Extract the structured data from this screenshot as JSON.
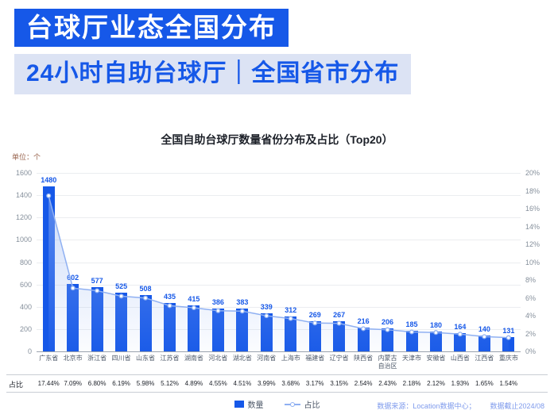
{
  "header": {
    "title": "台球厅业态全国分布",
    "subtitle": "24小时自助台球厅｜全国省市分布"
  },
  "chart": {
    "title": "全国自助台球厅数量省份分布及占比（Top20）",
    "unit_label": "单位：个",
    "ratio_row_label": "占比"
  },
  "chart_data": {
    "type": "bar",
    "title": "全国自助台球厅数量省份分布及占比（Top20）",
    "categories": [
      "广东省",
      "北京市",
      "浙江省",
      "四川省",
      "山东省",
      "江苏省",
      "湖南省",
      "河北省",
      "湖北省",
      "河南省",
      "上海市",
      "福建省",
      "辽宁省",
      "陕西省",
      "内蒙古自治区",
      "天津市",
      "安徽省",
      "山西省",
      "江西省",
      "重庆市"
    ],
    "series": [
      {
        "name": "数量",
        "type": "bar",
        "values": [
          1480,
          602,
          577,
          525,
          508,
          435,
          415,
          386,
          383,
          339,
          312,
          269,
          267,
          216,
          206,
          185,
          180,
          164,
          140,
          131
        ]
      },
      {
        "name": "占比",
        "type": "line",
        "values": [
          17.44,
          7.09,
          6.8,
          6.19,
          5.98,
          5.12,
          4.89,
          4.55,
          4.51,
          3.99,
          3.68,
          3.17,
          3.15,
          2.54,
          2.43,
          2.18,
          2.12,
          1.93,
          1.65,
          1.54
        ]
      }
    ],
    "left_axis": {
      "min": 0,
      "max": 1600,
      "step": 200
    },
    "right_axis": {
      "min": 0,
      "max": 20,
      "step": 2,
      "suffix": "%"
    },
    "grid": true,
    "legend_position": "bottom",
    "colors": {
      "bar": "#1658E8",
      "line": "#8FB0F2",
      "area": "#9DB9F3"
    }
  },
  "footer": {
    "source": "数据来源：Location数据中心；",
    "cutoff": "数据截止2024/08"
  }
}
